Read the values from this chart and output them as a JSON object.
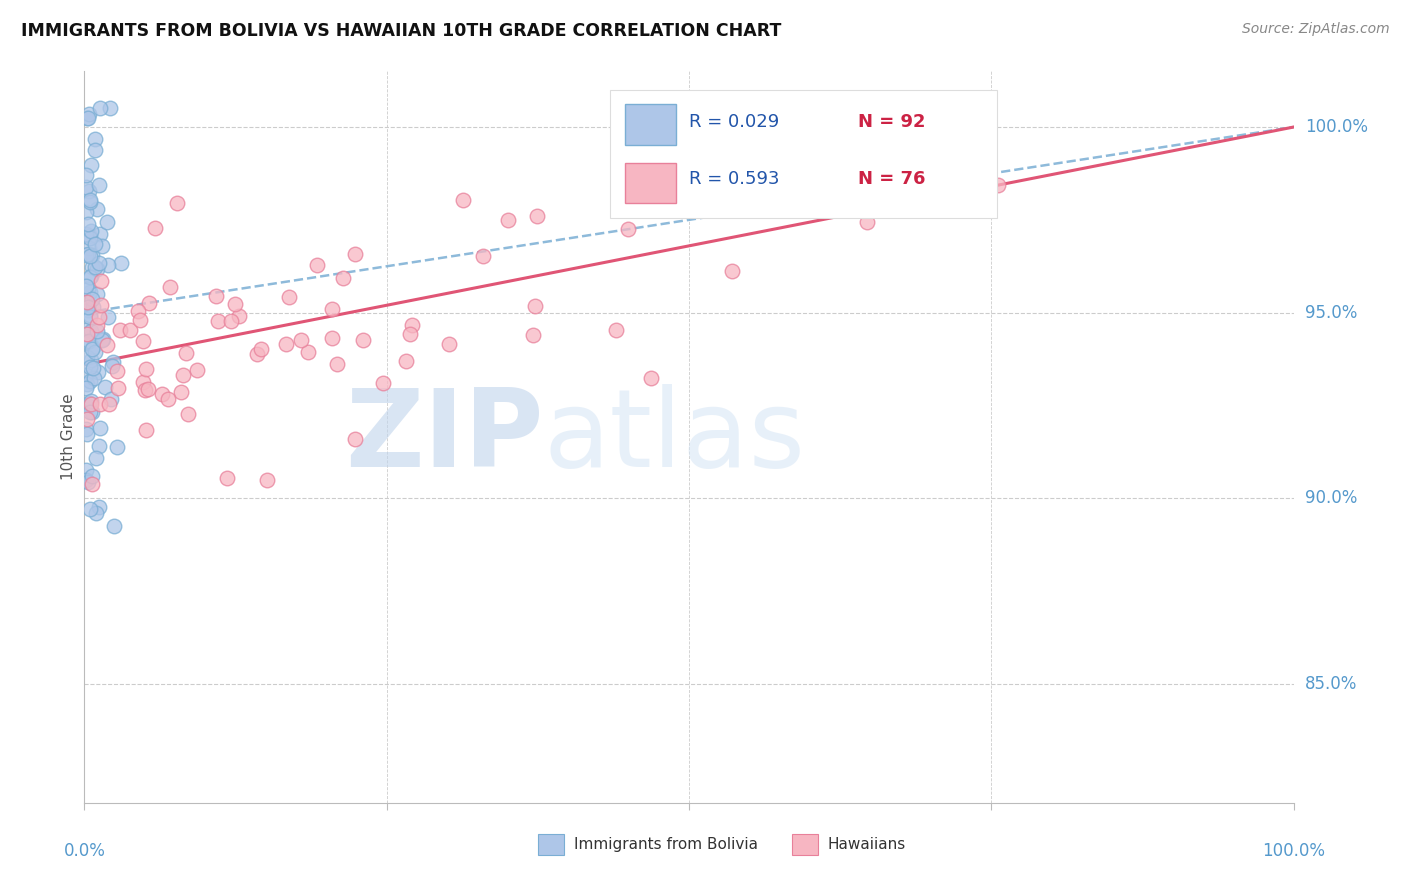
{
  "title": "IMMIGRANTS FROM BOLIVIA VS HAWAIIAN 10TH GRADE CORRELATION CHART",
  "source": "Source: ZipAtlas.com",
  "ylabel": "10th Grade",
  "ytick_labels": [
    "85.0%",
    "90.0%",
    "95.0%",
    "100.0%"
  ],
  "ytick_values": [
    0.85,
    0.9,
    0.95,
    1.0
  ],
  "legend_r_blue": "R = 0.029",
  "legend_n_blue": "N = 92",
  "legend_r_pink": "R = 0.593",
  "legend_n_pink": "N = 76",
  "blue_fill": "#aec6e8",
  "pink_fill": "#f7b6c2",
  "blue_edge": "#7aaed4",
  "pink_edge": "#e8809a",
  "trendline_blue_color": "#7aaed4",
  "trendline_pink_color": "#e05575",
  "xmin": 0.0,
  "xmax": 1.0,
  "ymin": 0.818,
  "ymax": 1.015,
  "watermark_zip": "ZIP",
  "watermark_atlas": "atlas",
  "watermark_color_zip": "#c5d8ee",
  "watermark_color_atlas": "#d8e8f5",
  "background_color": "#ffffff",
  "grid_color": "#cccccc",
  "ytick_color": "#5599cc",
  "xtick_color": "#5599cc",
  "bottom_legend_blue": "Immigrants from Bolivia",
  "bottom_legend_pink": "Hawaiians"
}
